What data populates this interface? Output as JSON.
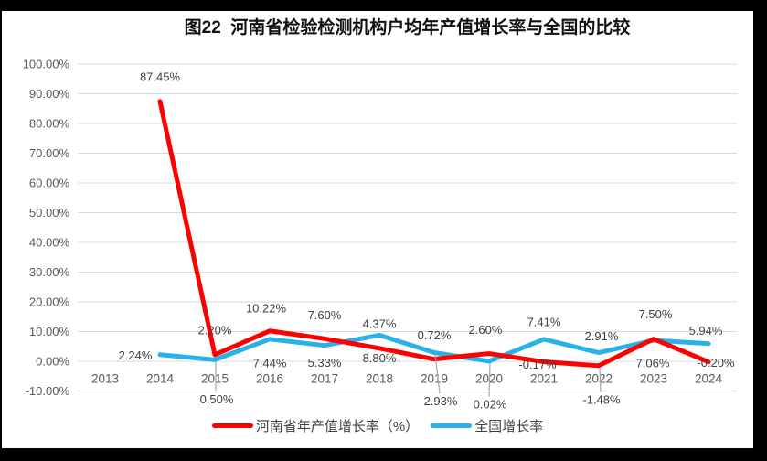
{
  "chart_data": {
    "type": "line",
    "title": "图22  河南省检验检测机构户均年产值增长率与全国的比较",
    "categories": [
      "2013",
      "2014",
      "2015",
      "2016",
      "2017",
      "2018",
      "2019",
      "2020",
      "2021",
      "2022",
      "2023",
      "2024"
    ],
    "y_axis": {
      "min": -10,
      "max": 100,
      "step": 10,
      "labels": [
        "100.00%",
        "90.00%",
        "80.00%",
        "70.00%",
        "60.00%",
        "50.00%",
        "40.00%",
        "30.00%",
        "20.00%",
        "10.00%",
        "0.00%",
        "-10.00%"
      ]
    },
    "grid": true,
    "legend_position": "bottom",
    "colors": {
      "grid": "#D9D9D9",
      "leader": "#A6A6A6",
      "axis_text": "#595959",
      "data_label": "#404040"
    },
    "series": [
      {
        "id": "henan",
        "name": "河南省年产值增长率（%）",
        "color": "#FE0000",
        "points": [
          {
            "x": "2014",
            "y": 87.45,
            "label": "87.45%",
            "dx": 0,
            "dy": -27
          },
          {
            "x": "2015",
            "y": 2.2,
            "label": "2.20%",
            "dx": 0,
            "dy": -27
          },
          {
            "x": "2016",
            "y": 10.22,
            "label": "10.22%",
            "dx": -4,
            "dy": -25
          },
          {
            "x": "2017",
            "y": 7.6,
            "label": "7.60%",
            "dx": 0,
            "dy": -26
          },
          {
            "x": "2018",
            "y": 4.37,
            "label": "4.37%",
            "dx": 0,
            "dy": -27
          },
          {
            "x": "2019",
            "y": 0.72,
            "label": "0.72%",
            "dx": 0,
            "dy": -26
          },
          {
            "x": "2020",
            "y": 2.6,
            "label": "2.60%",
            "dx": -4,
            "dy": -26
          },
          {
            "x": "2021",
            "y": -0.17,
            "label": "-0.17%",
            "dx": -7,
            "dy": 3
          },
          {
            "x": "2022",
            "y": -1.48,
            "label": "-1.48%",
            "dx": 3,
            "dy": 37,
            "leader": true
          },
          {
            "x": "2023",
            "y": 7.5,
            "label": "7.50%",
            "dx": 2,
            "dy": -27
          },
          {
            "x": "2024",
            "y": -0.2,
            "label": "-0.20%",
            "dx": 8,
            "dy": 1
          }
        ]
      },
      {
        "id": "national",
        "name": "全国增长率",
        "color": "#2AB1E8",
        "points": [
          {
            "x": "2014",
            "y": 2.24,
            "label": "2.24%",
            "dx": -27,
            "dy": 1
          },
          {
            "x": "2015",
            "y": 0.5,
            "label": "0.50%",
            "dx": 2,
            "dy": 43,
            "leader": true
          },
          {
            "x": "2016",
            "y": 7.44,
            "label": "7.44%",
            "dx": 0,
            "dy": 26
          },
          {
            "x": "2017",
            "y": 5.33,
            "label": "5.33%",
            "dx": 0,
            "dy": 19
          },
          {
            "x": "2018",
            "y": 8.8,
            "label": "8.80%",
            "dx": 0,
            "dy": 25
          },
          {
            "x": "2019",
            "y": 2.93,
            "label": "2.93%",
            "dx": 7,
            "dy": 53,
            "leader": true
          },
          {
            "x": "2020",
            "y": 0.02,
            "label": "0.02%",
            "dx": 1,
            "dy": 47,
            "leader": true
          },
          {
            "x": "2021",
            "y": 7.41,
            "label": "7.41%",
            "dx": 0,
            "dy": -19
          },
          {
            "x": "2022",
            "y": 2.91,
            "label": "2.91%",
            "dx": 3,
            "dy": -18
          },
          {
            "x": "2023",
            "y": 7.06,
            "label": "7.06%",
            "dx": -1,
            "dy": 25
          },
          {
            "x": "2024",
            "y": 5.94,
            "label": "5.94%",
            "dx": -3,
            "dy": -14
          }
        ]
      }
    ]
  }
}
